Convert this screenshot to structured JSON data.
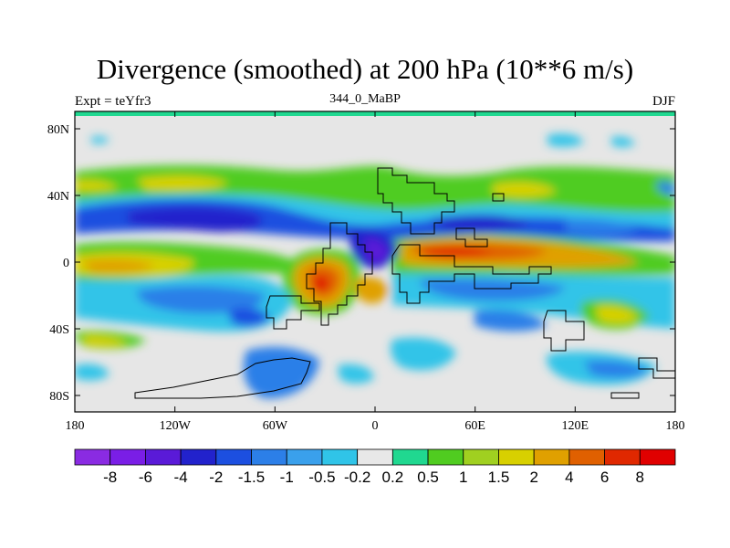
{
  "title": "Divergence (smoothed) at 200 hPa (10**6 m/s)",
  "left_string": "Expt = teYfr3",
  "center_string": "344_0_MaBP",
  "right_string": "DJF",
  "lat_labels": [
    "80N",
    "40N",
    "0",
    "40S",
    "80S"
  ],
  "lon_labels": [
    "180",
    "120W",
    "60W",
    "0",
    "60E",
    "120E",
    "180"
  ],
  "colorbar": {
    "colors": [
      "#8a2be2",
      "#7a1ee6",
      "#5a1ad8",
      "#2222cc",
      "#1c4fe0",
      "#2c7fe8",
      "#3aa0ec",
      "#30c4e8",
      "#e8e8e8",
      "#20d890",
      "#50cc20",
      "#a0d020",
      "#d8d000",
      "#e0a000",
      "#e06000",
      "#e02800",
      "#e00000"
    ],
    "labels": [
      "-8",
      "-6",
      "-4",
      "-2",
      "-1.5",
      "-1",
      "-0.5",
      "-0.2",
      "0.2",
      "0.5",
      "1",
      "1.5",
      "2",
      "4",
      "6",
      "8"
    ]
  }
}
